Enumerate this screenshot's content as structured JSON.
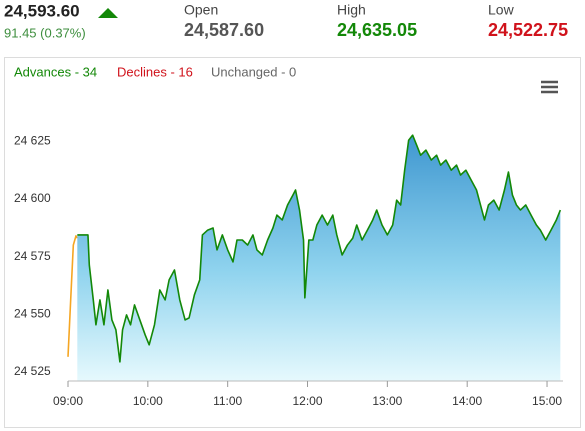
{
  "header": {
    "price": "24,593.60",
    "change": "91.45 (0.37%)",
    "open_label": "Open",
    "open": "24,587.60",
    "high_label": "High",
    "high": "24,635.05",
    "low_label": "Low",
    "low": "24,522.75"
  },
  "breadth": [
    "Advances - 34",
    "Declines - 16",
    "Unchanged - 0"
  ],
  "chart_data": {
    "type": "area",
    "grid": false,
    "xlim": [
      540,
      912
    ],
    "ylim": [
      24521,
      24646
    ],
    "xticks": [
      {
        "value": 540,
        "label": "09:00"
      },
      {
        "value": 600,
        "label": "10:00"
      },
      {
        "value": 660,
        "label": "11:00"
      },
      {
        "value": 720,
        "label": "12:00"
      },
      {
        "value": 780,
        "label": "13:00"
      },
      {
        "value": 840,
        "label": "14:00"
      },
      {
        "value": 900,
        "label": "15:00"
      }
    ],
    "yticks": [
      {
        "value": 24525,
        "label": "24 525"
      },
      {
        "value": 24550,
        "label": "24 550"
      },
      {
        "value": 24575,
        "label": "24 575"
      },
      {
        "value": 24600,
        "label": "24 600"
      },
      {
        "value": 24625,
        "label": "24 625"
      }
    ],
    "series": [
      {
        "color": "#f5a623",
        "x": [
          540,
          542,
          544,
          546,
          547
        ],
        "values": [
          24531.5,
          24556,
          24580,
          24584,
          24583
        ]
      },
      {
        "color": "#138808",
        "fill": true,
        "x": [
          547,
          555,
          556,
          559,
          561,
          564,
          567,
          570,
          573,
          576,
          579,
          581,
          584,
          587,
          590,
          594,
          598,
          601,
          605,
          609,
          613,
          616,
          620,
          624,
          628,
          631,
          635,
          639,
          641,
          645,
          649,
          652,
          656,
          660,
          664,
          667,
          671,
          675,
          679,
          682,
          686,
          690,
          694,
          697,
          701,
          705,
          709,
          711,
          714,
          717,
          718,
          721,
          724,
          727,
          731,
          735,
          739,
          742,
          746,
          750,
          754,
          757,
          761,
          765,
          769,
          772,
          776,
          780,
          784,
          787,
          790,
          793,
          796,
          799,
          802,
          805,
          809,
          813,
          817,
          820,
          824,
          828,
          832,
          835,
          839,
          843,
          847,
          850,
          853,
          856,
          860,
          864,
          868,
          871,
          874,
          877,
          880,
          884,
          888,
          892,
          895,
          899,
          903,
          907,
          910
        ],
        "values": [
          24584.4,
          24584.4,
          24571.4,
          24556.2,
          24545.4,
          24556.2,
          24545.4,
          24560.5,
          24547.5,
          24543.2,
          24529.3,
          24543.2,
          24549.7,
          24545.4,
          24554,
          24547.5,
          24541,
          24536.7,
          24545.4,
          24560.5,
          24556.2,
          24564.9,
          24569.2,
          24556.2,
          24547.5,
          24548.4,
          24558.4,
          24564.9,
          24584.4,
          24586.5,
          24587.4,
          24577.9,
          24584.4,
          24577.9,
          24572.7,
          24582.2,
          24582.2,
          24580,
          24584.4,
          24577.9,
          24575.7,
          24582.2,
          24587.4,
          24593,
          24590.9,
          24597.4,
          24601.7,
          24603.9,
          24595.2,
          24582.2,
          24557.1,
          24582.2,
          24582.2,
          24588.7,
          24593,
          24588.7,
          24593,
          24584.4,
          24575.7,
          24580,
          24583,
          24588.7,
          24582.2,
          24586.5,
          24590.9,
          24595.2,
          24588.7,
          24584.4,
          24588.7,
          24599.5,
          24597.4,
          24612.5,
          24625.5,
          24627.7,
          24623.4,
          24619,
          24621.2,
          24616.9,
          24619,
          24614.7,
          24616.9,
          24612.5,
          24614.7,
          24610.4,
          24612.5,
          24608.2,
          24603.9,
          24597.4,
          24590.9,
          24597.4,
          24599.5,
          24595.2,
          24603.9,
          24611.7,
          24601.7,
          24597.4,
          24595.2,
          24597.4,
          24593,
          24588.7,
          24586.5,
          24582.2,
          24586.5,
          24590.9,
          24595.2
        ]
      }
    ]
  }
}
